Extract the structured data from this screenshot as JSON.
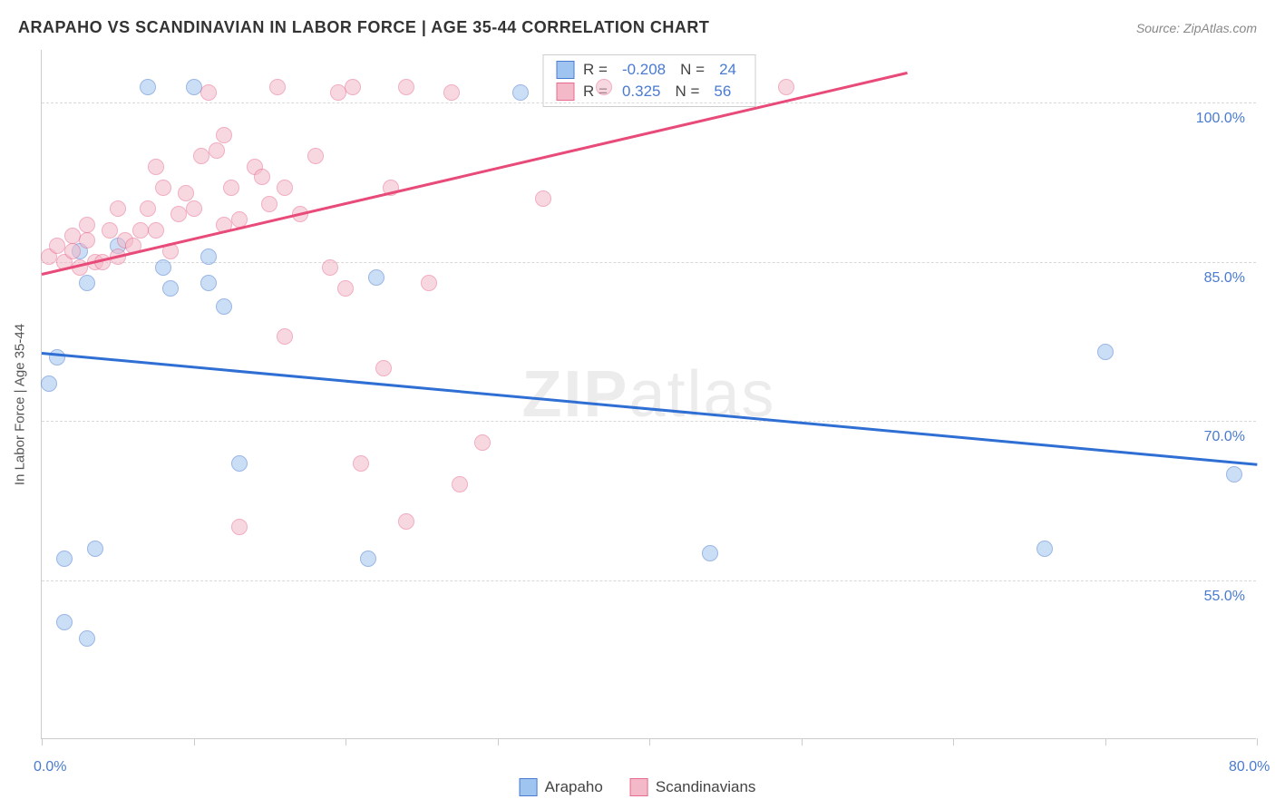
{
  "title": "ARAPAHO VS SCANDINAVIAN IN LABOR FORCE | AGE 35-44 CORRELATION CHART",
  "source": "Source: ZipAtlas.com",
  "watermark": "ZIPatlas",
  "y_axis_label": "In Labor Force | Age 35-44",
  "chart": {
    "type": "scatter",
    "xlim": [
      0,
      80
    ],
    "ylim": [
      40,
      105
    ],
    "x_ticks": [
      0,
      10,
      20,
      30,
      40,
      50,
      60,
      70,
      80
    ],
    "x_tick_labels_shown": {
      "0": "0.0%",
      "80": "80.0%"
    },
    "y_gridlines": [
      55,
      70,
      85,
      100
    ],
    "y_tick_labels": {
      "55": "55.0%",
      "70": "70.0%",
      "85": "85.0%",
      "100": "100.0%"
    },
    "background_color": "#ffffff",
    "grid_color": "#d8d8d8",
    "axis_color": "#cccccc",
    "tick_label_color": "#4a7bd0",
    "marker_radius": 9,
    "marker_opacity": 0.55,
    "series": [
      {
        "name": "Arapaho",
        "fill": "#9fc4ef",
        "stroke": "#4a7bd0",
        "R": "-0.208",
        "N": "24",
        "trendline": {
          "x1": 0,
          "y1": 76.5,
          "x2": 80,
          "y2": 66,
          "color": "#2f6fd4",
          "width": 2.5
        },
        "points": [
          [
            0.5,
            73.5
          ],
          [
            1.5,
            51
          ],
          [
            3,
            49.5
          ],
          [
            1.5,
            57
          ],
          [
            3.5,
            58
          ],
          [
            1,
            76
          ],
          [
            3,
            83
          ],
          [
            2.5,
            86
          ],
          [
            5,
            86.5
          ],
          [
            7,
            101.5
          ],
          [
            8.5,
            82.5
          ],
          [
            8,
            84.5
          ],
          [
            11,
            83
          ],
          [
            11,
            85.5
          ],
          [
            12,
            80.8
          ],
          [
            13,
            66
          ],
          [
            10,
            101.5
          ],
          [
            21.5,
            57
          ],
          [
            22,
            83.5
          ],
          [
            31.5,
            101
          ],
          [
            44,
            57.5
          ],
          [
            66,
            58
          ],
          [
            70,
            76.5
          ],
          [
            78.5,
            65
          ]
        ]
      },
      {
        "name": "Scandinavians",
        "fill": "#f4b9c8",
        "stroke": "#e76b8f",
        "R": "0.325",
        "N": "56",
        "trendline": {
          "x1": 0,
          "y1": 84,
          "x2": 57,
          "y2": 103,
          "color": "#e84a7a",
          "width": 2.5
        },
        "points": [
          [
            0.5,
            85.5
          ],
          [
            1,
            86.5
          ],
          [
            1.5,
            85
          ],
          [
            2,
            86
          ],
          [
            2.5,
            84.5
          ],
          [
            2,
            87.5
          ],
          [
            3,
            87
          ],
          [
            3.5,
            85
          ],
          [
            3,
            88.5
          ],
          [
            4,
            85
          ],
          [
            4.5,
            88
          ],
          [
            5,
            85.5
          ],
          [
            5,
            90
          ],
          [
            5.5,
            87
          ],
          [
            6,
            86.5
          ],
          [
            6.5,
            88
          ],
          [
            7,
            90
          ],
          [
            7.5,
            88
          ],
          [
            7.5,
            94
          ],
          [
            8,
            92
          ],
          [
            8.5,
            86
          ],
          [
            9,
            89.5
          ],
          [
            9.5,
            91.5
          ],
          [
            10,
            90
          ],
          [
            10.5,
            95
          ],
          [
            11,
            101
          ],
          [
            11.5,
            95.5
          ],
          [
            12,
            88.5
          ],
          [
            12.5,
            92
          ],
          [
            12,
            97
          ],
          [
            13,
            89
          ],
          [
            13,
            60
          ],
          [
            14,
            94
          ],
          [
            14.5,
            93
          ],
          [
            15,
            90.5
          ],
          [
            15.5,
            101.5
          ],
          [
            16,
            92
          ],
          [
            16,
            78
          ],
          [
            17,
            89.5
          ],
          [
            18,
            95
          ],
          [
            19,
            84.5
          ],
          [
            19.5,
            101
          ],
          [
            20,
            82.5
          ],
          [
            20.5,
            101.5
          ],
          [
            21,
            66
          ],
          [
            22.5,
            75
          ],
          [
            23,
            92
          ],
          [
            24,
            101.5
          ],
          [
            24,
            60.5
          ],
          [
            25.5,
            83
          ],
          [
            27,
            101
          ],
          [
            27.5,
            64
          ],
          [
            29,
            68
          ],
          [
            33,
            91
          ],
          [
            37,
            101.5
          ],
          [
            49,
            101.5
          ]
        ]
      }
    ]
  },
  "stats_box": {
    "rows": [
      {
        "swatch_fill": "#9fc4ef",
        "swatch_stroke": "#4a7bd0",
        "r_label": "R =",
        "r_val": "-0.208",
        "n_label": "N =",
        "n_val": "24"
      },
      {
        "swatch_fill": "#f4b9c8",
        "swatch_stroke": "#e76b8f",
        "r_label": "R =",
        "r_val": "0.325",
        "n_label": "N =",
        "n_val": "56"
      }
    ]
  },
  "bottom_legend": [
    {
      "swatch_fill": "#9fc4ef",
      "swatch_stroke": "#4a7bd0",
      "label": "Arapaho"
    },
    {
      "swatch_fill": "#f4b9c8",
      "swatch_stroke": "#e76b8f",
      "label": "Scandinavians"
    }
  ]
}
